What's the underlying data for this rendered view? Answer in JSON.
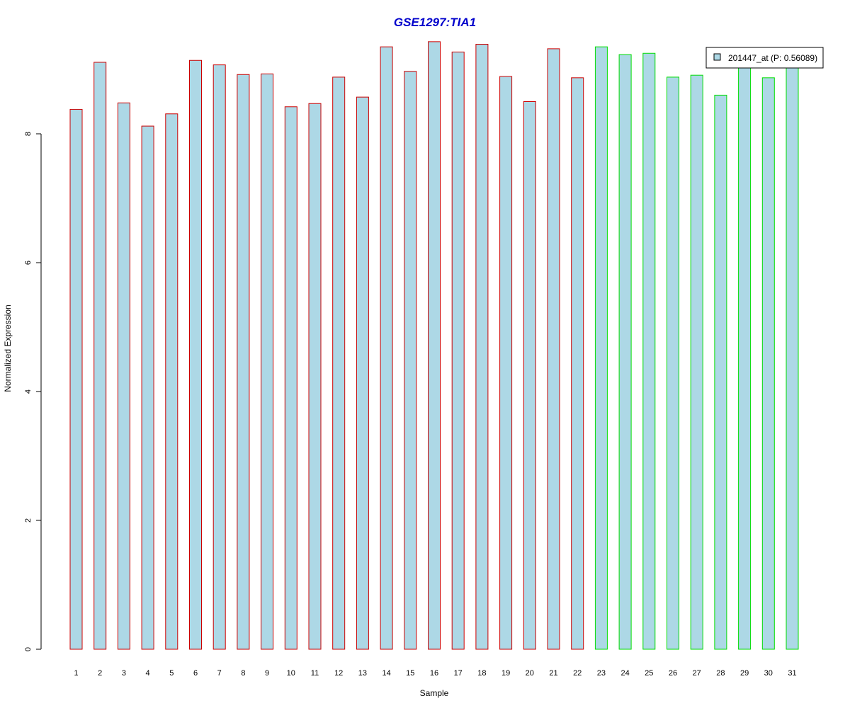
{
  "colors": {
    "title": "#0000cc",
    "bar_fill": "#add8e6",
    "group_1_border": "#cc0000",
    "group_2_border": "#00dd00",
    "axis": "#000000"
  },
  "chart_data": {
    "type": "bar",
    "title": "GSE1297:TIA1",
    "xlabel": "Sample",
    "ylabel": "Normalized Expression",
    "ylim": [
      0,
      9.5
    ],
    "yticks": [
      0,
      2,
      4,
      6,
      8
    ],
    "grid": false,
    "legend_position": "top-right",
    "legend": [
      "201447_at (P: 0.56089)"
    ],
    "categories": [
      "1",
      "2",
      "3",
      "4",
      "5",
      "6",
      "7",
      "8",
      "9",
      "10",
      "11",
      "12",
      "13",
      "14",
      "15",
      "16",
      "17",
      "18",
      "19",
      "20",
      "21",
      "22",
      "23",
      "24",
      "25",
      "26",
      "27",
      "28",
      "29",
      "30",
      "31"
    ],
    "values": [
      8.38,
      9.11,
      8.48,
      8.12,
      8.31,
      9.14,
      9.07,
      8.92,
      8.93,
      8.42,
      8.47,
      8.88,
      8.57,
      9.35,
      8.97,
      9.43,
      9.27,
      9.39,
      8.89,
      8.5,
      9.32,
      8.87,
      9.35,
      9.23,
      9.25,
      8.88,
      8.91,
      8.6,
      9.08,
      8.87,
      9.08
    ],
    "group": [
      1,
      1,
      1,
      1,
      1,
      1,
      1,
      1,
      1,
      1,
      1,
      1,
      1,
      1,
      1,
      1,
      1,
      1,
      1,
      1,
      1,
      1,
      2,
      2,
      2,
      2,
      2,
      2,
      2,
      2,
      2
    ]
  }
}
